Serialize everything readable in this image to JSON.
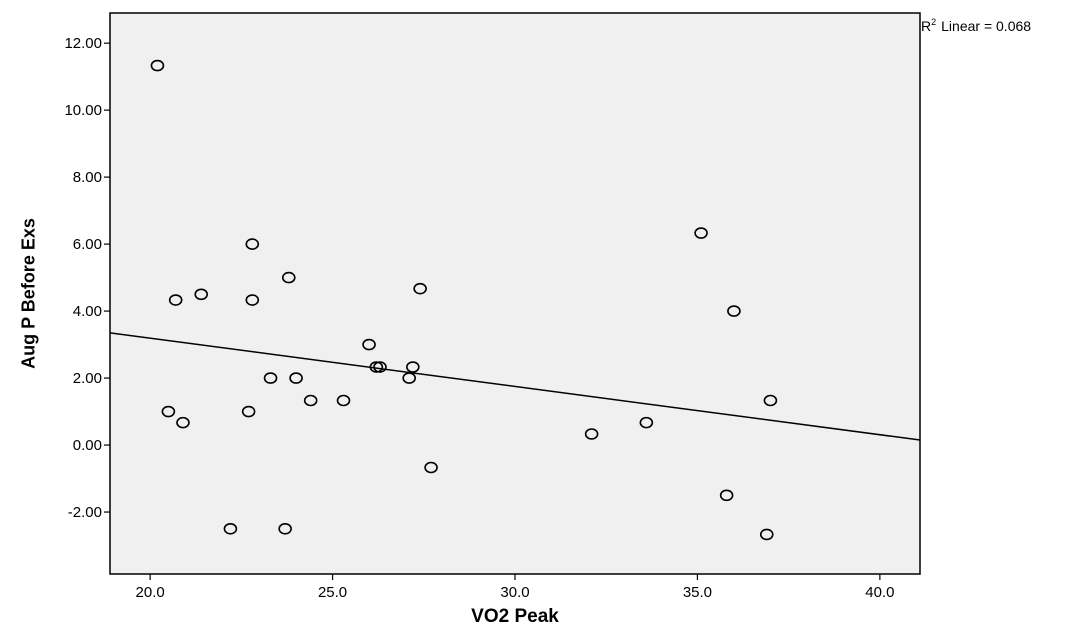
{
  "chart_data": {
    "type": "scatter",
    "title": "",
    "xlabel": "VO2 Peak",
    "ylabel": "Aug P Before Exs",
    "xlim": [
      18.9,
      41.1
    ],
    "ylim": [
      -3.85,
      12.9
    ],
    "xticks": [
      20,
      25,
      30,
      35,
      40
    ],
    "xtick_labels": [
      "20.0",
      "25.0",
      "30.0",
      "35.0",
      "40.0"
    ],
    "yticks": [
      -2,
      0,
      2,
      4,
      6,
      8,
      10,
      12
    ],
    "ytick_labels": [
      "-2.00",
      "0.00",
      "2.00",
      "4.00",
      "6.00",
      "8.00",
      "10.00",
      "12.00"
    ],
    "grid": false,
    "background_color": "#f0f0f0",
    "marker": "open-circle",
    "points": [
      {
        "x": 20.2,
        "y": 11.33
      },
      {
        "x": 20.5,
        "y": 1.0
      },
      {
        "x": 20.7,
        "y": 4.33
      },
      {
        "x": 20.9,
        "y": 0.67
      },
      {
        "x": 21.4,
        "y": 4.5
      },
      {
        "x": 22.2,
        "y": -2.5
      },
      {
        "x": 22.7,
        "y": 1.0
      },
      {
        "x": 22.8,
        "y": 6.0
      },
      {
        "x": 22.8,
        "y": 4.33
      },
      {
        "x": 23.3,
        "y": 2.0
      },
      {
        "x": 23.7,
        "y": -2.5
      },
      {
        "x": 23.8,
        "y": 5.0
      },
      {
        "x": 24.0,
        "y": 2.0
      },
      {
        "x": 24.4,
        "y": 1.33
      },
      {
        "x": 25.3,
        "y": 1.33
      },
      {
        "x": 26.0,
        "y": 3.0
      },
      {
        "x": 26.2,
        "y": 2.33
      },
      {
        "x": 26.3,
        "y": 2.33
      },
      {
        "x": 27.1,
        "y": 2.0
      },
      {
        "x": 27.2,
        "y": 2.33
      },
      {
        "x": 27.4,
        "y": 4.67
      },
      {
        "x": 27.7,
        "y": -0.67
      },
      {
        "x": 32.1,
        "y": 0.33
      },
      {
        "x": 33.6,
        "y": 0.67
      },
      {
        "x": 35.1,
        "y": 6.33
      },
      {
        "x": 35.8,
        "y": -1.5
      },
      {
        "x": 36.0,
        "y": 4.0
      },
      {
        "x": 36.9,
        "y": -2.67
      },
      {
        "x": 37.0,
        "y": 1.33
      }
    ],
    "fit_line": {
      "type": "linear",
      "x": [
        18.9,
        41.1
      ],
      "y": [
        3.35,
        0.15
      ]
    },
    "annotation": {
      "r2_symbol": "R",
      "r2_superscript": "2",
      "text": "Linear = 0.068"
    }
  }
}
